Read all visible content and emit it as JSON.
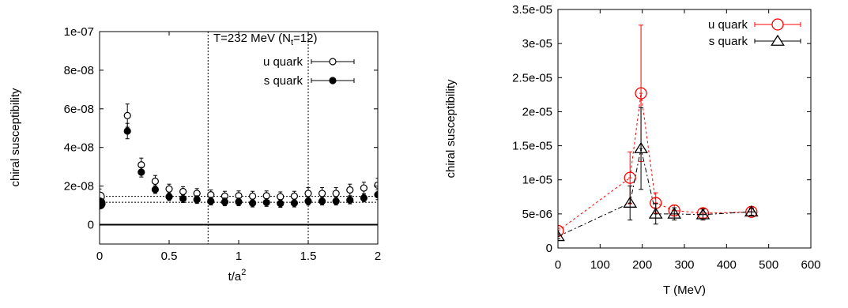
{
  "chart_data": [
    {
      "type": "scatter",
      "title": "",
      "annotation": {
        "main": "T=232 MeV (N",
        "sub": "t",
        "tail": "=12)"
      },
      "xlabel": {
        "main": "t/a",
        "sup": "2"
      },
      "ylabel": "chiral susceptibility",
      "xlim": [
        0,
        2
      ],
      "ylim": [
        -1e-08,
        1e-07
      ],
      "xticks": [
        "0",
        "0.5",
        "1",
        "1.5",
        "2"
      ],
      "xtick_values": [
        0,
        0.5,
        1,
        1.5,
        2
      ],
      "yticks": [
        "0",
        "2e-08",
        "4e-08",
        "6e-08",
        "8e-08",
        "1e-07"
      ],
      "ytick_values": [
        0,
        2e-08,
        4e-08,
        6e-08,
        8e-08,
        1e-07
      ],
      "grid": false,
      "legend_position": "top-right",
      "vertical_lines_x": [
        0.78,
        1.5
      ],
      "plateau_lines": [
        {
          "series": "u quark",
          "y": 1.47e-08,
          "x_range": [
            0,
            2
          ]
        },
        {
          "series": "s quark",
          "y": 1.16e-08,
          "x_range": [
            0,
            2
          ]
        }
      ],
      "zero_line": true,
      "x": [
        0.2,
        0.3,
        0.4,
        0.5,
        0.6,
        0.7,
        0.8,
        0.9,
        1.0,
        1.1,
        1.2,
        1.3,
        1.4,
        1.5,
        1.6,
        1.7,
        1.8,
        1.9,
        2.0
      ],
      "series": [
        {
          "name": "u quark",
          "marker": "open-circle",
          "color": "#000000",
          "values": [
            5.65e-08,
            3.1e-08,
            2.25e-08,
            1.85e-08,
            1.72e-08,
            1.62e-08,
            1.55e-08,
            1.48e-08,
            1.5e-08,
            1.48e-08,
            1.5e-08,
            1.45e-08,
            1.48e-08,
            1.62e-08,
            1.62e-08,
            1.62e-08,
            1.8e-08,
            1.9e-08,
            2.05e-08
          ],
          "errors": [
            6e-09,
            3.5e-09,
            3e-09,
            2.5e-09,
            2.5e-09,
            2.5e-09,
            2.5e-09,
            2.5e-09,
            2.5e-09,
            2.5e-09,
            2.5e-09,
            2.5e-09,
            2.5e-09,
            3e-09,
            3e-09,
            3e-09,
            3e-09,
            3e-09,
            3.5e-09
          ],
          "extra_point": {
            "x": 0.0,
            "y": 1.45e-08,
            "err": 4e-09
          }
        },
        {
          "name": "s quark",
          "marker": "filled-circle",
          "color": "#000000",
          "values": [
            4.85e-08,
            2.72e-08,
            1.82e-08,
            1.45e-08,
            1.35e-08,
            1.3e-08,
            1.22e-08,
            1.18e-08,
            1.18e-08,
            1.12e-08,
            1.15e-08,
            1.1e-08,
            1.12e-08,
            1.22e-08,
            1.22e-08,
            1.22e-08,
            1.28e-08,
            1.38e-08,
            1.55e-08
          ],
          "errors": [
            4e-09,
            2.5e-09,
            2e-09,
            2e-09,
            2e-09,
            2e-09,
            2e-09,
            2e-09,
            2e-09,
            2e-09,
            2e-09,
            2e-09,
            2e-09,
            2e-09,
            2e-09,
            2e-09,
            2e-09,
            2e-09,
            2.5e-09
          ],
          "extra_point": {
            "x": 0.0,
            "y": 1.1e-08,
            "err": 2e-09
          }
        }
      ]
    },
    {
      "type": "line",
      "title": "",
      "xlabel": "T (MeV)",
      "ylabel": "chiral susceptibility",
      "xlim": [
        0,
        600
      ],
      "ylim": [
        0,
        3.5e-05
      ],
      "xticks": [
        "0",
        "100",
        "200",
        "300",
        "400",
        "500",
        "600"
      ],
      "xtick_values": [
        0,
        100,
        200,
        300,
        400,
        500,
        600
      ],
      "yticks": [
        "0",
        "5e-06",
        "1e-05",
        "1.5e-05",
        "2e-05",
        "2.5e-05",
        "3e-05",
        "3.5e-05"
      ],
      "ytick_values": [
        0,
        5e-06,
        1e-05,
        1.5e-05,
        2e-05,
        2.5e-05,
        3e-05,
        3.5e-05
      ],
      "grid": false,
      "legend_position": "top-right",
      "series": [
        {
          "name": "u quark",
          "marker": "open-circle",
          "color": "#ff0000",
          "points": [
            {
              "x": 0,
              "y": 2.5e-06,
              "err": 4e-07,
              "xerr": 0
            },
            {
              "x": 171,
              "y": 1.03e-05,
              "err": 3.8e-06,
              "xerr": 4
            },
            {
              "x": 197,
              "y": 2.27e-05,
              "err": 1e-05,
              "xerr": 4
            },
            {
              "x": 232,
              "y": 6.6e-06,
              "err": 1.5e-06,
              "xerr": 5
            },
            {
              "x": 276,
              "y": 5.5e-06,
              "err": 8e-07,
              "xerr": 6
            },
            {
              "x": 344,
              "y": 5.1e-06,
              "err": 7e-07,
              "xerr": 8
            },
            {
              "x": 459,
              "y": 5.3e-06,
              "err": 6e-07,
              "xerr": 10
            }
          ]
        },
        {
          "name": "s quark",
          "marker": "open-triangle",
          "color": "#000000",
          "points": [
            {
              "x": 0,
              "y": 1.7e-06,
              "err": 3e-07,
              "xerr": 0
            },
            {
              "x": 171,
              "y": 6.6e-06,
              "err": 2.5e-06,
              "xerr": 4
            },
            {
              "x": 197,
              "y": 1.46e-05,
              "err": 6e-06,
              "xerr": 4
            },
            {
              "x": 232,
              "y": 5e-06,
              "err": 1.5e-06,
              "xerr": 5
            },
            {
              "x": 276,
              "y": 5e-06,
              "err": 9e-07,
              "xerr": 6
            },
            {
              "x": 344,
              "y": 4.9e-06,
              "err": 8e-07,
              "xerr": 8
            },
            {
              "x": 459,
              "y": 5.3e-06,
              "err": 5e-07,
              "xerr": 10
            }
          ]
        }
      ]
    }
  ]
}
